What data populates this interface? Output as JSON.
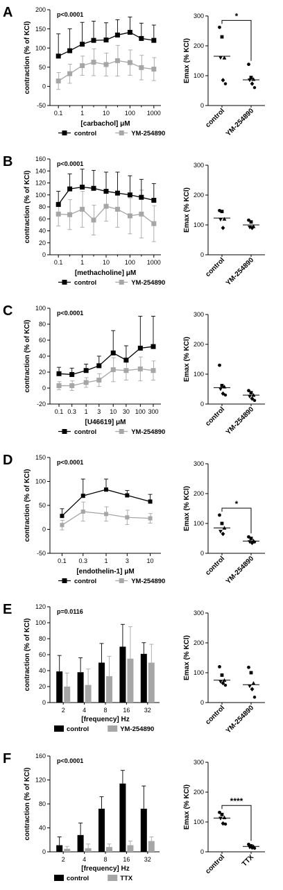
{
  "colors": {
    "control": "#000000",
    "treatment": "#a6a6a6",
    "axis": "#000000",
    "page_background": "#ffffff"
  },
  "icons": {
    "control_marker": "filled-black-square",
    "treatment_marker": "filled-grey-square",
    "emax_markers": [
      "circle",
      "square",
      "triangle-up",
      "triangle-down",
      "diamond",
      "hexagon"
    ]
  },
  "chart_data": [
    {
      "panel": "A",
      "type": "line",
      "log_x": true,
      "x": [
        0.1,
        0.3,
        1,
        3,
        10,
        30,
        100,
        300,
        1000
      ],
      "x_tick_labels": [
        "0.1",
        "1",
        "10",
        "100",
        "1000"
      ],
      "x_tick_values": [
        0.1,
        1,
        10,
        100,
        1000
      ],
      "ylim": [
        -50,
        200
      ],
      "y_ticks": [
        -50,
        0,
        50,
        100,
        150,
        200
      ],
      "grid": false,
      "xlabel": "[carbachol] μM",
      "ylabel": "contraction (% of KCl)",
      "annotation": "p<0.0001",
      "legend_position": "bottom",
      "series": [
        {
          "name": "control",
          "values": [
            79,
            93,
            110,
            120,
            121,
            134,
            141,
            125,
            120
          ],
          "errors": [
            58,
            57,
            57,
            50,
            45,
            40,
            40,
            40,
            40
          ]
        },
        {
          "name": "YM-254890",
          "values": [
            14,
            33,
            54,
            63,
            57,
            67,
            62,
            49,
            45
          ],
          "errors": [
            22,
            25,
            25,
            35,
            30,
            40,
            33,
            32,
            30
          ]
        }
      ]
    },
    {
      "panel": "A",
      "type": "scatter",
      "categories": [
        "control",
        "YM-254890"
      ],
      "ylim": [
        0,
        300
      ],
      "y_ticks": [
        0,
        100,
        200,
        300
      ],
      "ylabel": "Emax (% KCl)",
      "significance": "*",
      "points": [
        [
          262,
          230,
          160,
          160,
          85,
          73
        ],
        [
          138,
          94,
          88,
          85,
          73,
          60
        ]
      ],
      "means": [
        165,
        86
      ]
    },
    {
      "panel": "B",
      "type": "line",
      "log_x": true,
      "x": [
        0.1,
        0.3,
        1,
        3,
        10,
        30,
        100,
        300,
        1000
      ],
      "x_tick_labels": [
        "0.1",
        "1",
        "10",
        "100",
        "1000"
      ],
      "x_tick_values": [
        0.1,
        1,
        10,
        100,
        1000
      ],
      "ylim": [
        0,
        160
      ],
      "y_ticks": [
        0,
        20,
        40,
        60,
        80,
        100,
        120,
        140,
        160
      ],
      "grid": false,
      "xlabel": "[methacholine] μM",
      "ylabel": "contraction (% of KCl)",
      "annotation": "p<0.0001",
      "legend_position": "bottom",
      "series": [
        {
          "name": "control",
          "values": [
            84,
            110,
            113,
            111,
            106,
            103,
            100,
            96,
            91
          ],
          "errors": [
            22,
            25,
            30,
            30,
            32,
            35,
            32,
            30,
            28
          ]
        },
        {
          "name": "YM-254890",
          "values": [
            68,
            67,
            76,
            58,
            81,
            76,
            65,
            68,
            52
          ],
          "errors": [
            20,
            25,
            30,
            25,
            25,
            30,
            30,
            40,
            30
          ]
        }
      ]
    },
    {
      "panel": "B",
      "type": "scatter",
      "categories": [
        "control",
        "YM-254890"
      ],
      "ylim": [
        0,
        300
      ],
      "y_ticks": [
        0,
        100,
        200,
        300
      ],
      "ylabel": "Emax (% KCl)",
      "points": [
        [
          148,
          145,
          120,
          118,
          90
        ],
        [
          116,
          110,
          95,
          92,
          90
        ]
      ],
      "means": [
        123,
        100
      ]
    },
    {
      "panel": "C",
      "type": "line",
      "log_x": true,
      "x": [
        0.1,
        0.3,
        1,
        3,
        10,
        30,
        100,
        300
      ],
      "x_tick_labels": [
        "0.1",
        "0.3",
        "1",
        "3",
        "10",
        "30",
        "100",
        "300"
      ],
      "x_tick_values": [
        0.1,
        0.3,
        1,
        3,
        10,
        30,
        100,
        300
      ],
      "ylim": [
        -20,
        100
      ],
      "y_ticks": [
        -20,
        0,
        20,
        40,
        60,
        80,
        100
      ],
      "grid": false,
      "xlabel": "[U46619] μM",
      "ylabel": "contraction (% of KCl)",
      "annotation": "p<0.0001",
      "legend_position": "bottom",
      "series": [
        {
          "name": "control",
          "values": [
            18,
            17,
            22,
            28,
            44,
            35,
            50,
            52
          ],
          "errors": [
            8,
            8,
            8,
            12,
            28,
            18,
            40,
            38
          ]
        },
        {
          "name": "YM-254890",
          "values": [
            3,
            3,
            7,
            10,
            23,
            22,
            24,
            22
          ],
          "errors": [
            5,
            6,
            6,
            8,
            15,
            12,
            15,
            12
          ]
        }
      ]
    },
    {
      "panel": "C",
      "type": "scatter",
      "categories": [
        "control",
        "YM-254890"
      ],
      "ylim": [
        0,
        300
      ],
      "y_ticks": [
        0,
        100,
        200,
        300
      ],
      "ylabel": "Emax (% KCl)",
      "points": [
        [
          130,
          62,
          58,
          50,
          35,
          30
        ],
        [
          45,
          38,
          30,
          25,
          18,
          12
        ]
      ],
      "means": [
        55,
        30
      ]
    },
    {
      "panel": "D",
      "type": "line",
      "log_x": true,
      "x": [
        0.1,
        0.3,
        1,
        3,
        10
      ],
      "x_tick_labels": [
        "0.1",
        "0.3",
        "1",
        "3",
        "10"
      ],
      "x_tick_values": [
        0.1,
        0.3,
        1,
        3,
        10
      ],
      "ylim": [
        -50,
        150
      ],
      "y_ticks": [
        -50,
        0,
        50,
        100,
        150
      ],
      "grid": false,
      "xlabel": "[endothelin-1] μM",
      "ylabel": "contraction (% of KCl)",
      "annotation": "p<0.0001",
      "legend_position": "bottom",
      "series": [
        {
          "name": "control",
          "values": [
            28,
            70,
            83,
            71,
            58
          ],
          "errors": [
            15,
            35,
            22,
            10,
            15
          ]
        },
        {
          "name": "YM-254890",
          "values": [
            9,
            37,
            32,
            25,
            23
          ],
          "errors": [
            10,
            20,
            15,
            15,
            10
          ]
        }
      ]
    },
    {
      "panel": "D",
      "type": "scatter",
      "categories": [
        "control",
        "YM-254890"
      ],
      "ylim": [
        0,
        300
      ],
      "y_ticks": [
        0,
        100,
        200,
        300
      ],
      "ylabel": "Emax (% KCl)",
      "significance": "*",
      "points": [
        [
          128,
          100,
          85,
          73,
          65
        ],
        [
          55,
          50,
          42,
          38,
          35,
          38
        ]
      ],
      "means": [
        85,
        41
      ]
    },
    {
      "panel": "E",
      "type": "bar",
      "categories": [
        "2",
        "4",
        "8",
        "16",
        "32"
      ],
      "ylim": [
        0,
        120
      ],
      "y_ticks": [
        0,
        20,
        40,
        60,
        80,
        100,
        120
      ],
      "grid": false,
      "xlabel": "[frequency] Hz",
      "ylabel": "contraction (% of KCl)",
      "annotation": "p=0.0116",
      "legend_position": "bottom",
      "series": [
        {
          "name": "control",
          "values": [
            39,
            38,
            50,
            70,
            61
          ],
          "errors": [
            20,
            18,
            24,
            28,
            14
          ]
        },
        {
          "name": "YM-254890",
          "values": [
            20,
            22,
            33,
            55,
            50
          ],
          "errors": [
            17,
            20,
            25,
            40,
            23
          ]
        }
      ]
    },
    {
      "panel": "E",
      "type": "scatter",
      "categories": [
        "control",
        "YM-254890"
      ],
      "ylim": [
        0,
        300
      ],
      "y_ticks": [
        0,
        100,
        200,
        300
      ],
      "ylabel": "Emax (% KCl)",
      "points": [
        [
          120,
          92,
          75,
          70,
          65,
          58
        ],
        [
          118,
          100,
          65,
          55,
          45,
          18
        ]
      ],
      "means": [
        75,
        60
      ]
    },
    {
      "panel": "F",
      "type": "bar",
      "categories": [
        "2",
        "4",
        "8",
        "16",
        "32"
      ],
      "ylim": [
        0,
        160
      ],
      "y_ticks": [
        0,
        40,
        80,
        120,
        160
      ],
      "grid": false,
      "xlabel": "[frequency] Hz",
      "ylabel": "contraction (% of KCl)",
      "annotation": "p<0.0001",
      "legend_position": "bottom",
      "series": [
        {
          "name": "control",
          "values": [
            11,
            28,
            72,
            114,
            72
          ],
          "errors": [
            14,
            20,
            20,
            22,
            38
          ]
        },
        {
          "name": "TTX",
          "values": [
            5,
            6,
            8,
            11,
            18
          ],
          "errors": [
            4,
            7,
            5,
            7,
            7
          ]
        }
      ]
    },
    {
      "panel": "F",
      "type": "scatter",
      "categories": [
        "control",
        "TTX"
      ],
      "ylim": [
        0,
        300
      ],
      "y_ticks": [
        0,
        100,
        200,
        300
      ],
      "ylabel": "Emax (% KCl)",
      "significance": "****",
      "points": [
        [
          132,
          125,
          115,
          112,
          95,
          93
        ],
        [
          25,
          20,
          18,
          15,
          14,
          12
        ]
      ],
      "means": [
        113,
        18
      ]
    }
  ]
}
